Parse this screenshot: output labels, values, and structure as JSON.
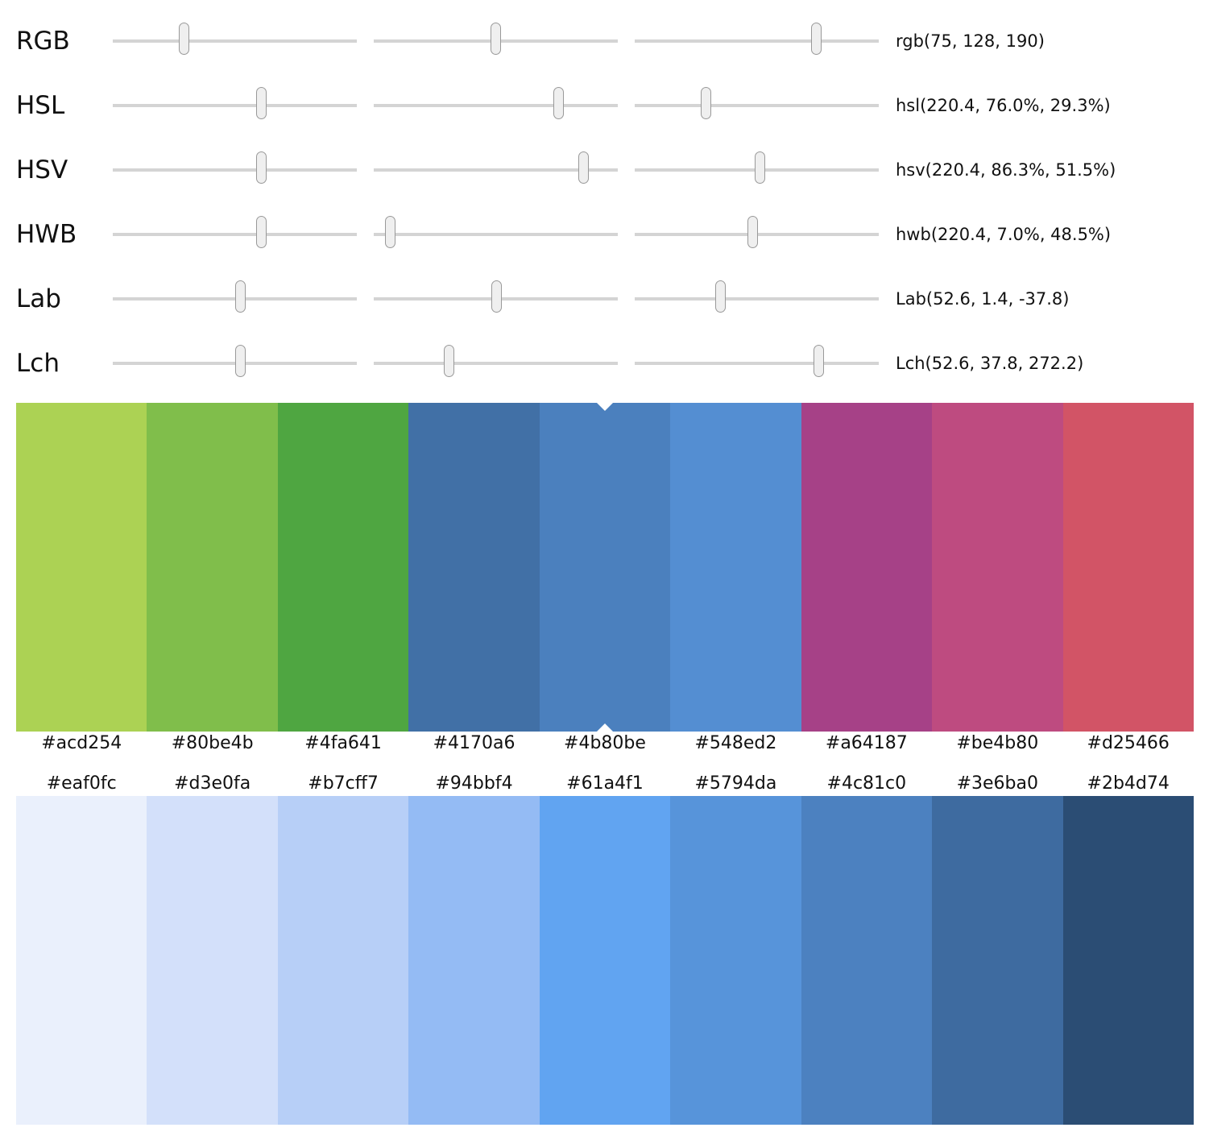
{
  "models": [
    {
      "label": "RGB",
      "value": "rgb(75, 128, 190)",
      "positions": [
        0.294,
        0.502,
        0.745
      ]
    },
    {
      "label": "HSL",
      "value": "hsl(220.4, 76.0%, 29.3%)",
      "positions": [
        0.612,
        0.76,
        0.293
      ]
    },
    {
      "label": "HSV",
      "value": "hsv(220.4, 86.3%, 51.5%)",
      "positions": [
        0.612,
        0.863,
        0.515
      ]
    },
    {
      "label": "HWB",
      "value": "hwb(220.4, 7.0%, 48.5%)",
      "positions": [
        0.612,
        0.07,
        0.485
      ]
    },
    {
      "label": "Lab",
      "value": "Lab(52.6, 1.4, -37.8)",
      "positions": [
        0.526,
        0.505,
        0.352
      ]
    },
    {
      "label": "Lch",
      "value": "Lch(52.6, 37.8, 272.2)",
      "positions": [
        0.526,
        0.31,
        0.756
      ]
    }
  ],
  "selected_index": 4,
  "palette_top": [
    "#acd254",
    "#80be4b",
    "#4fa641",
    "#4170a6",
    "#4b80be",
    "#548ed2",
    "#a64187",
    "#be4b80",
    "#d25466"
  ],
  "palette_bottom": [
    "#eaf0fc",
    "#d3e0fa",
    "#b7cff7",
    "#94bbf4",
    "#61a4f1",
    "#5794da",
    "#4c81c0",
    "#3e6ba0",
    "#2b4d74"
  ]
}
